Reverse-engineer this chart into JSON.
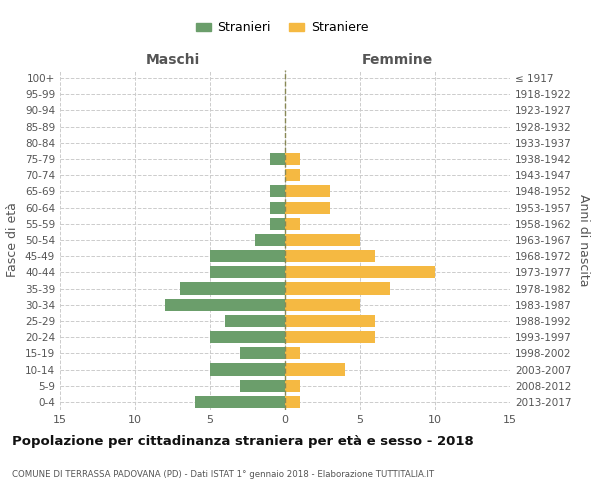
{
  "age_groups": [
    "0-4",
    "5-9",
    "10-14",
    "15-19",
    "20-24",
    "25-29",
    "30-34",
    "35-39",
    "40-44",
    "45-49",
    "50-54",
    "55-59",
    "60-64",
    "65-69",
    "70-74",
    "75-79",
    "80-84",
    "85-89",
    "90-94",
    "95-99",
    "100+"
  ],
  "birth_years": [
    "2013-2017",
    "2008-2012",
    "2003-2007",
    "1998-2002",
    "1993-1997",
    "1988-1992",
    "1983-1987",
    "1978-1982",
    "1973-1977",
    "1968-1972",
    "1963-1967",
    "1958-1962",
    "1953-1957",
    "1948-1952",
    "1943-1947",
    "1938-1942",
    "1933-1937",
    "1928-1932",
    "1923-1927",
    "1918-1922",
    "≤ 1917"
  ],
  "males": [
    6,
    3,
    5,
    3,
    5,
    4,
    8,
    7,
    5,
    5,
    2,
    1,
    1,
    1,
    0,
    1,
    0,
    0,
    0,
    0,
    0
  ],
  "females": [
    1,
    1,
    4,
    1,
    6,
    6,
    5,
    7,
    10,
    6,
    5,
    1,
    3,
    3,
    1,
    1,
    0,
    0,
    0,
    0,
    0
  ],
  "male_color": "#6b9e6b",
  "female_color": "#f5b942",
  "background_color": "#ffffff",
  "grid_color": "#cccccc",
  "title": "Popolazione per cittadinanza straniera per età e sesso - 2018",
  "subtitle": "COMUNE DI TERRASSA PADOVANA (PD) - Dati ISTAT 1° gennaio 2018 - Elaborazione TUTTITALIA.IT",
  "left_label": "Maschi",
  "right_label": "Femmine",
  "y_left_label": "Fasce di età",
  "y_right_label": "Anni di nascita",
  "legend_male": "Stranieri",
  "legend_female": "Straniere",
  "xlim": 15
}
